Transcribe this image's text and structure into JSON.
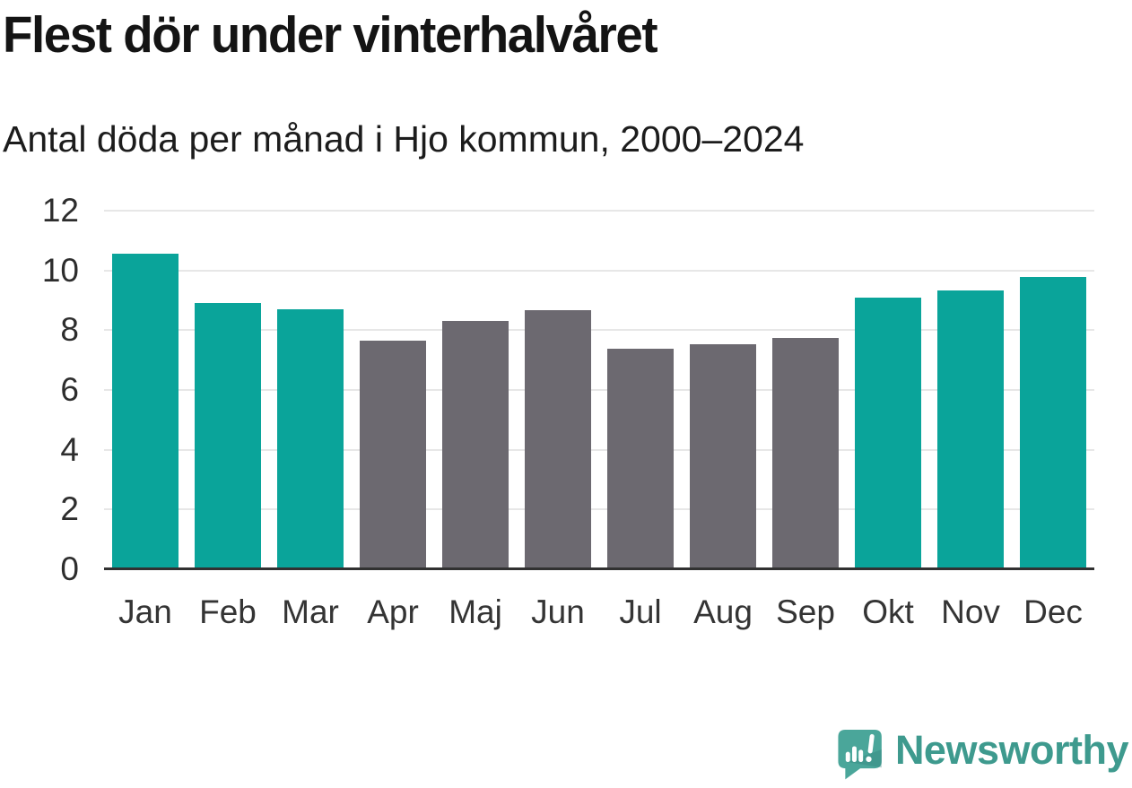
{
  "page": {
    "background": "#ffffff"
  },
  "chart_data": {
    "type": "bar",
    "title": "Flest dör under vinterhalvåret",
    "subtitle": "Antal döda per månad i Hjo kommun, 2000–2024",
    "categories": [
      "Jan",
      "Feb",
      "Mar",
      "Apr",
      "Maj",
      "Jun",
      "Jul",
      "Aug",
      "Sep",
      "Okt",
      "Nov",
      "Dec"
    ],
    "values": [
      10.57,
      8.92,
      8.7,
      7.64,
      8.32,
      8.67,
      7.39,
      7.52,
      7.74,
      9.08,
      9.33,
      9.77
    ],
    "groups": [
      "winter",
      "winter",
      "winter",
      "summer",
      "summer",
      "summer",
      "summer",
      "summer",
      "summer",
      "winter",
      "winter",
      "winter"
    ],
    "colors": {
      "winter": "#0aa49a",
      "summer": "#6c6970"
    },
    "xlabel": "",
    "ylabel": "",
    "ylim": [
      0,
      12
    ],
    "yticks": [
      0,
      2,
      4,
      6,
      8,
      10,
      12
    ],
    "grid": "horizontal-light",
    "legend": "none",
    "axis_line_color": "#313131",
    "gridline_color": "#e7e7e7",
    "tick_label_color": "#2d2d2d"
  },
  "footer": {
    "logo_text": "Newsworthy",
    "logo_text_color": "#3e9a8e",
    "logo_icon": "speech-bubble-bar-chart-exclamation",
    "logo_icon_color": "#4aa69a"
  }
}
